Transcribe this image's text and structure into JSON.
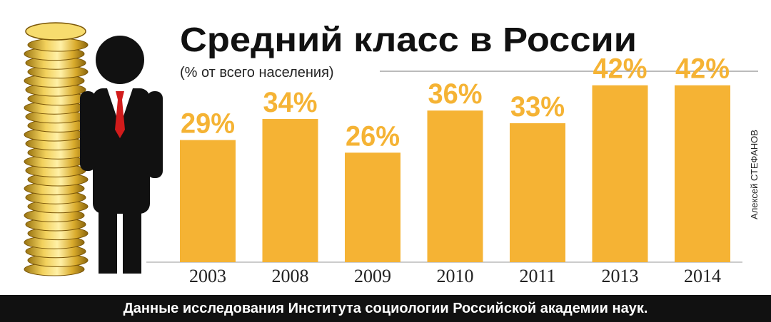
{
  "chart_data": {
    "type": "bar",
    "title": "Средний класс в России",
    "subtitle": "(% от всего населения)",
    "categories": [
      "2003",
      "2008",
      "2009",
      "2010",
      "2011",
      "2013",
      "2014"
    ],
    "values": [
      29,
      34,
      26,
      36,
      33,
      42,
      42
    ],
    "value_labels": [
      "29%",
      "34%",
      "26%",
      "36%",
      "33%",
      "42%",
      "42%"
    ],
    "unit": "%",
    "ylim": [
      0,
      45
    ],
    "grid": false,
    "legend": "none",
    "bar_color": "#F5B334",
    "label_color": "#F5B334",
    "source_note": "Данные исследования Института социологии Российской академии наук.",
    "credit": "Алексей СТЕФАНОВ"
  },
  "decor": {
    "coins_icon": "coin-stack-icon",
    "person_icon": "businessman-icon"
  }
}
